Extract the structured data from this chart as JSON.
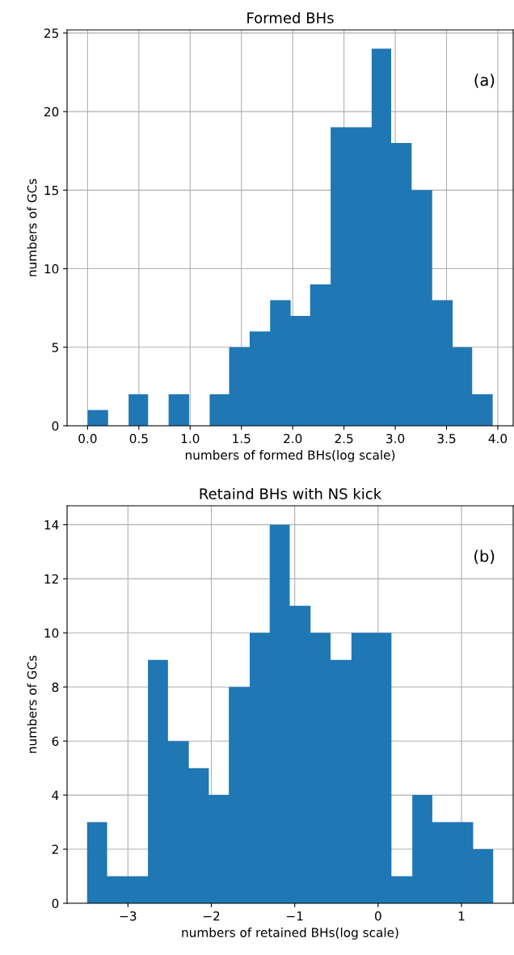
{
  "chart_data": [
    {
      "type": "histogram",
      "title": "Formed BHs",
      "xlabel": "numbers of formed BHs(log scale)",
      "ylabel": "numbers of GCs",
      "color": "#1f77b4",
      "bins": [
        0,
        0.2,
        0.4,
        0.59,
        0.79,
        0.99,
        1.19,
        1.38,
        1.58,
        1.78,
        1.98,
        2.17,
        2.37,
        2.57,
        2.77,
        2.96,
        3.16,
        3.36,
        3.56,
        3.75,
        3.95
      ],
      "values": [
        1,
        0,
        2,
        0,
        2,
        0,
        2,
        5,
        6,
        8,
        7,
        9,
        19,
        19,
        24,
        18,
        15,
        8,
        5,
        2
      ],
      "xlim": [
        -0.2,
        4.15
      ],
      "xticks": [
        {
          "value": 0,
          "label": "0.0"
        },
        0.5,
        {
          "value": 1,
          "label": "1.0"
        },
        1.5,
        {
          "value": 2,
          "label": "2.0"
        },
        2.5,
        {
          "value": 3,
          "label": "3.0"
        },
        3.5,
        {
          "value": 4,
          "label": "4.0"
        }
      ],
      "ylim": [
        0,
        25.2
      ],
      "yticks": [
        0,
        5,
        10,
        15,
        20,
        25
      ],
      "grid": true,
      "annotations": [
        "(a)"
      ]
    },
    {
      "type": "histogram",
      "title": "Retaind BHs with NS kick",
      "xlabel": "numbers of retained BHs(log scale)",
      "ylabel": "numbers of GCs",
      "color": "#1f77b4",
      "bins": [
        -3.49,
        -3.25,
        -3.0,
        -2.76,
        -2.52,
        -2.27,
        -2.03,
        -1.79,
        -1.54,
        -1.3,
        -1.06,
        -0.81,
        -0.57,
        -0.32,
        -0.08,
        0.16,
        0.41,
        0.65,
        0.89,
        1.14,
        1.38
      ],
      "values": [
        3,
        1,
        1,
        9,
        6,
        5,
        4,
        8,
        10,
        14,
        11,
        10,
        9,
        10,
        10,
        1,
        4,
        3,
        3,
        2
      ],
      "xlim": [
        -3.73,
        1.62
      ],
      "xticks": [
        {
          "value": -3,
          "label": "−3"
        },
        {
          "value": -2,
          "label": "−2"
        },
        {
          "value": -1,
          "label": "−1"
        },
        0,
        1
      ],
      "ylim": [
        0,
        14.7
      ],
      "yticks": [
        0,
        2,
        4,
        6,
        8,
        10,
        12,
        14
      ],
      "grid": true,
      "annotations": [
        "(b)"
      ]
    }
  ]
}
